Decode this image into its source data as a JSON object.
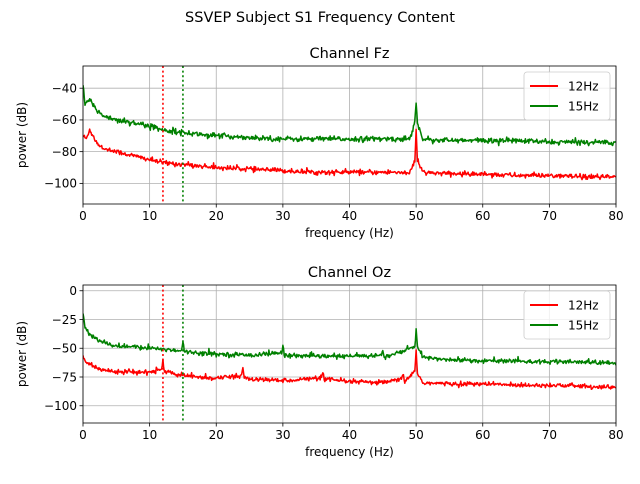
{
  "figure": {
    "suptitle": "SSVEP Subject S1 Frequency Content"
  },
  "colors": {
    "s12": "#ff0000",
    "s15": "#008000",
    "grid": "#b0b0b0",
    "axis": "#000000"
  },
  "chart_data": [
    {
      "type": "line",
      "title": "Channel Fz",
      "xlabel": "frequency (Hz)",
      "ylabel": "power (dB)",
      "xlim": [
        0,
        80
      ],
      "ylim": [
        -113,
        -26
      ],
      "xticks": [
        0,
        10,
        20,
        30,
        40,
        50,
        60,
        70,
        80
      ],
      "yticks": [
        -100,
        -80,
        -60,
        -40
      ],
      "grid": true,
      "legend": "top-right",
      "vlines": [
        {
          "x": 12,
          "color": "red",
          "style": "dotted"
        },
        {
          "x": 15,
          "color": "green",
          "style": "dotted"
        }
      ],
      "series": [
        {
          "name": "12Hz",
          "color": "red",
          "x": [
            0,
            0.5,
            1,
            2,
            3,
            5,
            8,
            10,
            12,
            15,
            20,
            25,
            30,
            35,
            40,
            45,
            49,
            49.8,
            50,
            50.2,
            51,
            55,
            60,
            65,
            70,
            75,
            80
          ],
          "y": [
            -70,
            -72,
            -66,
            -74,
            -78,
            -80,
            -83,
            -85,
            -87,
            -88,
            -90,
            -91,
            -92,
            -93,
            -93,
            -93,
            -93,
            -86,
            -67,
            -86,
            -93,
            -94,
            -94,
            -95,
            -95,
            -96,
            -96
          ],
          "noise_db": 1.3
        },
        {
          "name": "15Hz",
          "color": "green",
          "x": [
            0,
            0.3,
            1,
            2,
            3,
            5,
            8,
            10,
            12,
            15,
            20,
            25,
            30,
            35,
            40,
            45,
            49,
            49.8,
            50,
            50.2,
            51,
            55,
            60,
            65,
            70,
            75,
            80
          ],
          "y": [
            -38,
            -50,
            -47,
            -54,
            -57,
            -60,
            -62,
            -64,
            -66,
            -68,
            -70,
            -71,
            -72,
            -72,
            -72,
            -72,
            -72,
            -62,
            -48,
            -62,
            -72,
            -73,
            -73,
            -73,
            -74,
            -74,
            -74
          ],
          "noise_db": 1.4
        }
      ]
    },
    {
      "type": "line",
      "title": "Channel Oz",
      "xlabel": "frequency (Hz)",
      "ylabel": "power (dB)",
      "xlim": [
        0,
        80
      ],
      "ylim": [
        -115,
        5
      ],
      "xticks": [
        0,
        10,
        20,
        30,
        40,
        50,
        60,
        70,
        80
      ],
      "yticks": [
        -100,
        -75,
        -50,
        -25,
        0
      ],
      "grid": true,
      "legend": "top-right",
      "vlines": [
        {
          "x": 12,
          "color": "red",
          "style": "dotted"
        },
        {
          "x": 15,
          "color": "green",
          "style": "dotted"
        }
      ],
      "series": [
        {
          "name": "12Hz",
          "color": "red",
          "x": [
            0,
            0.5,
            1,
            2,
            3,
            5,
            8,
            10,
            11.8,
            12,
            12.2,
            15,
            20,
            23.8,
            24,
            24.2,
            25,
            30,
            35.8,
            36,
            36.2,
            40,
            45,
            47.8,
            48,
            48.2,
            49.8,
            50,
            50.2,
            51,
            55,
            60,
            65,
            70,
            75,
            80
          ],
          "y": [
            -57,
            -62,
            -64,
            -67,
            -69,
            -70,
            -71,
            -71,
            -68,
            -60,
            -70,
            -74,
            -76,
            -74,
            -67,
            -75,
            -77,
            -78,
            -76,
            -71,
            -77,
            -79,
            -80,
            -77,
            -73,
            -79,
            -70,
            -52,
            -72,
            -80,
            -81,
            -81,
            -82,
            -82,
            -83,
            -84
          ],
          "noise_db": 1.6
        },
        {
          "name": "15Hz",
          "color": "green",
          "x": [
            0,
            0.3,
            1,
            2,
            3,
            5,
            8,
            10,
            14.8,
            15,
            15.2,
            20,
            25,
            29.8,
            30,
            30.2,
            35,
            40,
            44.8,
            45,
            45.2,
            49.8,
            50,
            50.2,
            51,
            55,
            60,
            65,
            70,
            75,
            80
          ],
          "y": [
            -20,
            -32,
            -38,
            -42,
            -45,
            -48,
            -49,
            -50,
            -52,
            -43,
            -53,
            -55,
            -56,
            -54,
            -47,
            -56,
            -57,
            -57,
            -56,
            -52,
            -58,
            -49,
            -33,
            -49,
            -58,
            -60,
            -61,
            -61,
            -62,
            -62,
            -63
          ],
          "noise_db": 1.6
        }
      ]
    }
  ]
}
